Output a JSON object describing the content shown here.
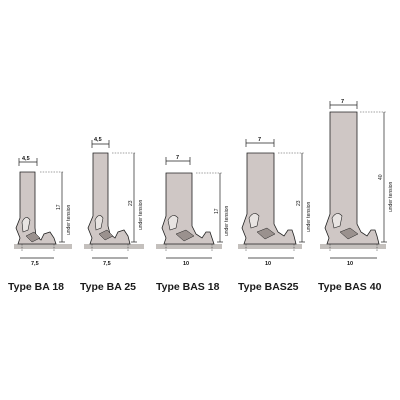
{
  "diagram": {
    "profiles": [
      {
        "id": "ba18",
        "type_label": "Type BA 18",
        "top_width": "4,5",
        "height": "17",
        "height_note": "under tension",
        "base_width": "7,5"
      },
      {
        "id": "ba25",
        "type_label": "Type BA 25",
        "top_width": "4,5",
        "height": "23",
        "height_note": "under tension",
        "base_width": "7,5"
      },
      {
        "id": "bas18",
        "type_label": "Type BAS 18",
        "top_width": "7",
        "height": "17",
        "height_note": "under tension",
        "base_width": "10"
      },
      {
        "id": "bas25",
        "type_label": "Type BAS25",
        "top_width": "7",
        "height": "23",
        "height_note": "under tension",
        "base_width": "10"
      },
      {
        "id": "bas40",
        "type_label": "Type BAS 40",
        "top_width": "7",
        "height": "40",
        "height_note": "under tension",
        "base_width": "10"
      }
    ],
    "colors": {
      "seal_fill": "#cfc7c5",
      "seal_stroke": "#222222",
      "base_fill": "#c4c0bd",
      "text": "#111111"
    }
  }
}
